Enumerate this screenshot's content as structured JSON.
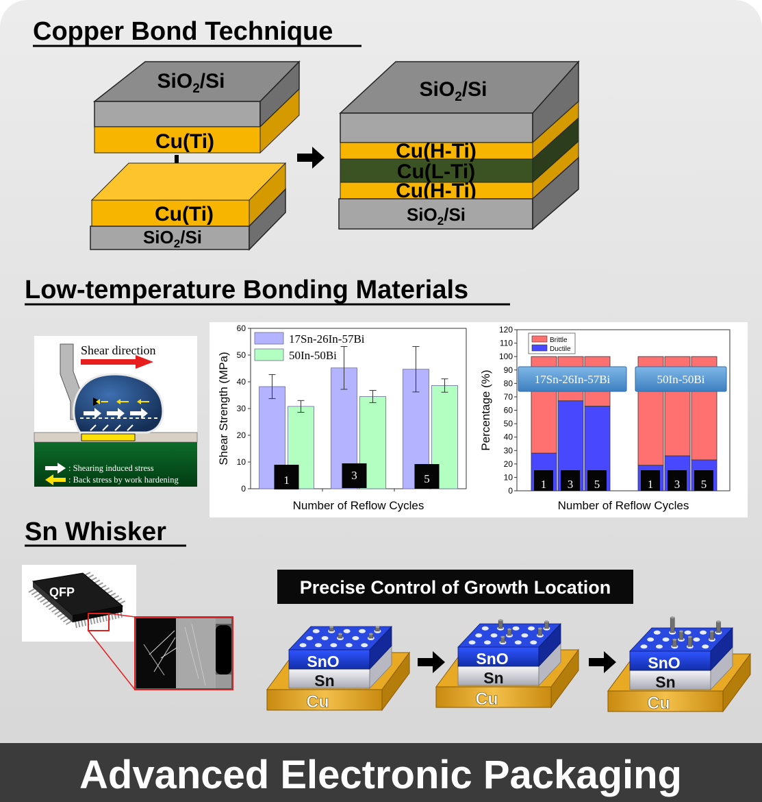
{
  "sections": {
    "copper": {
      "title": "Copper Bond Technique"
    },
    "lowtemp": {
      "title": "Low-temperature Bonding Materials"
    },
    "whisker": {
      "title": "Sn Whisker"
    }
  },
  "copper_diagram": {
    "top_substrate": {
      "label": "SiO",
      "sub": "2",
      "suffix": "/Si"
    },
    "top_cu": "Cu(Ti)",
    "bottom_cu": "Cu(Ti)",
    "bottom_substrate": {
      "label": "SiO",
      "sub": "2",
      "suffix": "/Si"
    },
    "bonded_top": {
      "label": "SiO",
      "sub": "2",
      "suffix": "/Si"
    },
    "bonded_layers": [
      "Cu(H-Ti)",
      "Cu(L-Ti)",
      "Cu(H-Ti)"
    ],
    "bonded_bottom": {
      "label": "SiO",
      "sub": "2",
      "suffix": "/Si"
    },
    "colors": {
      "copper": "#f7b500",
      "copper_top": "#fdc42c",
      "low_ti": "#3b5323",
      "gray": "#a6a6a6",
      "gray_top": "#8c8c8c"
    }
  },
  "shear_schematic": {
    "direction_label": "Shear direction",
    "legend": [
      {
        "symbol": "white-arrow",
        "text": ": Shearing induced stress"
      },
      {
        "symbol": "yellow-arrow",
        "text": ": Back stress by work hardening"
      }
    ]
  },
  "chart_data": [
    {
      "type": "bar",
      "xlabel": "Number of Reflow Cycles",
      "ylabel": "Shear Strength (MPa)",
      "ylim": [
        0,
        60
      ],
      "yticks": [
        0,
        10,
        20,
        30,
        40,
        50,
        60
      ],
      "categories": [
        "1",
        "3",
        "5"
      ],
      "series": [
        {
          "name": "17Sn-26In-57Bi",
          "values": [
            38.2,
            45.2,
            44.7
          ],
          "errors": [
            4.5,
            8.0,
            8.5
          ],
          "color": "#b3b3ff"
        },
        {
          "name": "50In-50Bi",
          "values": [
            30.8,
            34.5,
            38.6
          ],
          "errors": [
            2.2,
            2.3,
            2.5
          ],
          "color": "#b3ffc2"
        }
      ],
      "legend": "top-left"
    },
    {
      "type": "bar",
      "stacked": true,
      "xlabel": "Number of Reflow Cycles",
      "ylabel": "Percentage (%)",
      "ylim": [
        0,
        120
      ],
      "yticks": [
        0,
        10,
        20,
        30,
        40,
        50,
        60,
        70,
        80,
        90,
        100,
        110,
        120
      ],
      "groups": [
        {
          "name": "17Sn-26In-57Bi",
          "categories": [
            "1",
            "3",
            "5"
          ],
          "ductile": [
            28,
            67,
            63
          ]
        },
        {
          "name": "50In-50Bi",
          "categories": [
            "1",
            "3",
            "5"
          ],
          "ductile": [
            19,
            26,
            23
          ]
        }
      ],
      "series": [
        {
          "name": "Brittle",
          "color": "#ff7070"
        },
        {
          "name": "Ductile",
          "color": "#4848ff"
        }
      ],
      "legend": "top-left"
    }
  ],
  "whisker_diagram": {
    "package_label": "QFP",
    "banner": "Precise Control of Growth Location",
    "layers": [
      "SnO",
      "Sn",
      "Cu"
    ],
    "colors": {
      "sno": "#1f3fd0",
      "sn": "#d9d9e0",
      "cu": "#e3a21a"
    }
  },
  "footer": {
    "title": "Advanced Electronic Packaging"
  }
}
